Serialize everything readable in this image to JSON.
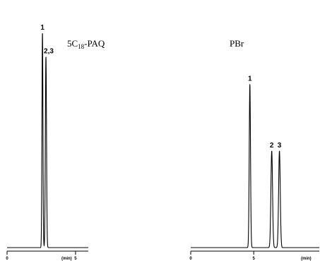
{
  "chart_data": [
    {
      "type": "line",
      "title_main": "5C",
      "title_sub": "18",
      "title_rest": "-PAQ",
      "x_unit_label": "(min)",
      "xlim": [
        0,
        7
      ],
      "ylim": [
        0,
        1.05
      ],
      "x_tick_labels": [
        {
          "x": 0,
          "label": "0"
        },
        {
          "x": 5.9,
          "label": "5"
        }
      ],
      "peaks": [
        {
          "label": "1",
          "t": 3.05,
          "height": 1.0,
          "width": 0.06
        },
        {
          "label": "2,3",
          "t": 3.35,
          "height": 0.89,
          "width": 0.07
        }
      ]
    },
    {
      "type": "line",
      "title_main": "PBr",
      "title_sub": "",
      "title_rest": "",
      "x_unit_label": "(min)",
      "xlim": [
        0,
        10
      ],
      "ylim": [
        0,
        1.35
      ],
      "x_tick_labels": [
        {
          "x": 0,
          "label": "0"
        },
        {
          "x": 4.9,
          "label": "5"
        }
      ],
      "peaks": [
        {
          "label": "1",
          "t": 4.6,
          "height": 0.98,
          "width": 0.07
        },
        {
          "label": "2",
          "t": 6.3,
          "height": 0.58,
          "width": 0.09
        },
        {
          "label": "3",
          "t": 6.9,
          "height": 0.58,
          "width": 0.09
        }
      ]
    }
  ]
}
